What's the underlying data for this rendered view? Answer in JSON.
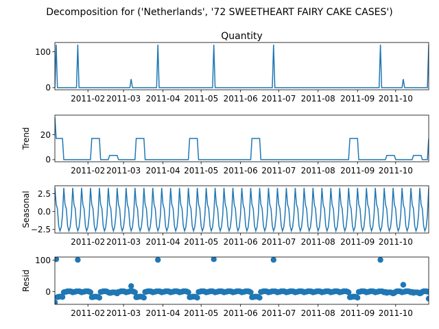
{
  "chart_data": {
    "type": "line",
    "suptitle": "Decomposition for ('Netherlands', '72 SWEETHEART FAIRY CAKE CASES')",
    "x_range": [
      "2011-01-06",
      "2011-10-27"
    ],
    "x_ticks": [
      "2011-02",
      "2011-03",
      "2011-04",
      "2011-05",
      "2011-06",
      "2011-07",
      "2011-08",
      "2011-09",
      "2011-10"
    ],
    "panels": [
      {
        "id": "quantity",
        "title": "Quantity",
        "ylabel": "",
        "kind": "line",
        "ylim": [
          -6,
          126
        ],
        "yticks": [
          "0",
          "100"
        ],
        "baseline": 0,
        "events": [
          {
            "x": "2011-01-07",
            "y": 120
          },
          {
            "x": "2011-01-24",
            "y": 120
          },
          {
            "x": "2011-03-07",
            "y": 24
          },
          {
            "x": "2011-03-28",
            "y": 120
          },
          {
            "x": "2011-05-11",
            "y": 120
          },
          {
            "x": "2011-06-27",
            "y": 120
          },
          {
            "x": "2011-09-19",
            "y": 120
          },
          {
            "x": "2011-10-07",
            "y": 24
          },
          {
            "x": "2011-10-27",
            "y": 120
          }
        ]
      },
      {
        "id": "trend",
        "title": "",
        "ylabel": "Trend",
        "kind": "line",
        "ylim": [
          -1.7,
          35.7
        ],
        "yticks": [
          "0",
          "20"
        ],
        "points": [
          [
            "2011-01-06",
            34
          ],
          [
            "2011-01-07",
            17
          ],
          [
            "2011-01-12",
            17
          ],
          [
            "2011-01-13",
            0
          ],
          [
            "2011-02-03",
            0
          ],
          [
            "2011-02-04",
            17
          ],
          [
            "2011-02-10",
            17
          ],
          [
            "2011-02-11",
            0
          ],
          [
            "2011-02-17",
            0
          ],
          [
            "2011-02-18",
            3.4
          ],
          [
            "2011-02-24",
            3.4
          ],
          [
            "2011-02-25",
            0
          ],
          [
            "2011-03-10",
            0
          ],
          [
            "2011-03-11",
            17
          ],
          [
            "2011-03-17",
            17
          ],
          [
            "2011-03-18",
            0
          ],
          [
            "2011-04-21",
            0
          ],
          [
            "2011-04-22",
            17
          ],
          [
            "2011-04-28",
            17
          ],
          [
            "2011-04-29",
            0
          ],
          [
            "2011-06-09",
            0
          ],
          [
            "2011-06-10",
            17
          ],
          [
            "2011-06-16",
            17
          ],
          [
            "2011-06-17",
            0
          ],
          [
            "2011-08-25",
            0
          ],
          [
            "2011-08-26",
            17
          ],
          [
            "2011-09-01",
            17
          ],
          [
            "2011-09-02",
            0
          ],
          [
            "2011-09-23",
            0
          ],
          [
            "2011-09-24",
            3.4
          ],
          [
            "2011-09-30",
            3.4
          ],
          [
            "2011-10-01",
            0
          ],
          [
            "2011-10-14",
            0
          ],
          [
            "2011-10-15",
            3.4
          ],
          [
            "2011-10-21",
            3.4
          ],
          [
            "2011-10-22",
            0
          ],
          [
            "2011-10-26",
            0
          ],
          [
            "2011-10-27",
            17
          ]
        ]
      },
      {
        "id": "seasonal",
        "title": "",
        "ylabel": "Seasonal",
        "kind": "line",
        "ylim": [
          -3.0,
          3.6
        ],
        "yticks": [
          "−2.5",
          "0.0",
          "2.5"
        ],
        "period_days": 7,
        "pattern": [
          3.3,
          1.0,
          0.4,
          -2.0,
          -2.7,
          -2.2,
          -0.5
        ],
        "start": "2011-01-06"
      },
      {
        "id": "resid",
        "title": "",
        "ylabel": "Resid",
        "kind": "scatter",
        "ylim": [
          -40,
          110
        ],
        "yticks": [
          "0",
          "100"
        ],
        "outliers": [
          {
            "x": "2011-01-06",
            "y": -34
          },
          {
            "x": "2011-01-07",
            "y": 103
          },
          {
            "x": "2011-01-24",
            "y": 101
          },
          {
            "x": "2011-03-07",
            "y": 18
          },
          {
            "x": "2011-03-28",
            "y": 101
          },
          {
            "x": "2011-05-11",
            "y": 103
          },
          {
            "x": "2011-06-27",
            "y": 101
          },
          {
            "x": "2011-09-19",
            "y": 101
          },
          {
            "x": "2011-10-07",
            "y": 22
          },
          {
            "x": "2011-10-27",
            "y": -22
          }
        ]
      }
    ],
    "colors": {
      "series": "#1f77b4",
      "axes": "#000000"
    }
  }
}
